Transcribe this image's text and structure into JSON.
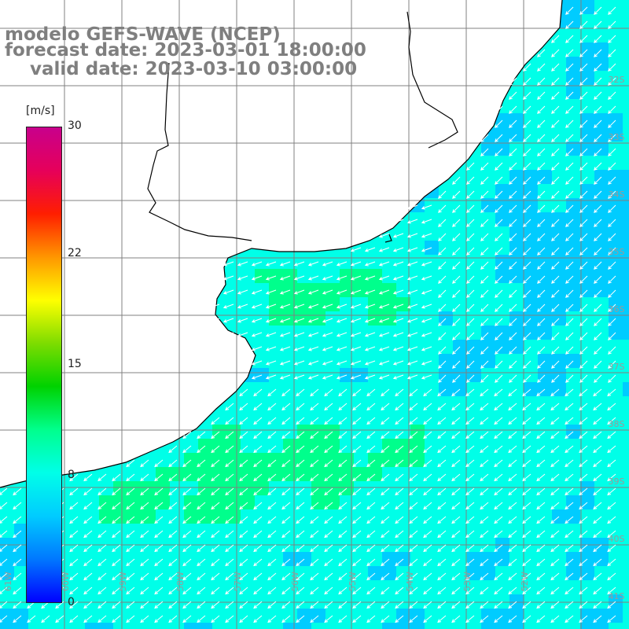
{
  "title": {
    "line1": "modelo GEFS-WAVE (NCEP)",
    "line2": "forecast date: 2023-03-01 18:00:00",
    "line3": "    valid date: 2023-03-10 03:00:00"
  },
  "colorbar": {
    "unit": "[m/s]",
    "ticks": [
      "30",
      "22",
      "15",
      "8",
      "0"
    ],
    "tick_values": [
      30,
      22,
      15,
      8,
      0
    ],
    "min": 0,
    "max": 30,
    "colors": [
      "#0000ff",
      "#0078ff",
      "#00ccff",
      "#00ffe8",
      "#00ff8c",
      "#00d200",
      "#7ddc00",
      "#ffff00",
      "#ff9600",
      "#ff1e00",
      "#e6005a",
      "#c8008c"
    ]
  },
  "map": {
    "lat_labels": [
      "32S",
      "33S",
      "34S",
      "35S",
      "36S",
      "37S",
      "38S",
      "39S",
      "40S",
      "41S"
    ],
    "lon_labels": [
      "61W",
      "60W",
      "59W",
      "58W",
      "57W",
      "56W",
      "55W",
      "54W",
      "53W",
      "52W"
    ],
    "land_color": "#ffffff",
    "coast_color": "#000000",
    "grid_color": "#808080",
    "arrow_color": "#ffffff"
  }
}
